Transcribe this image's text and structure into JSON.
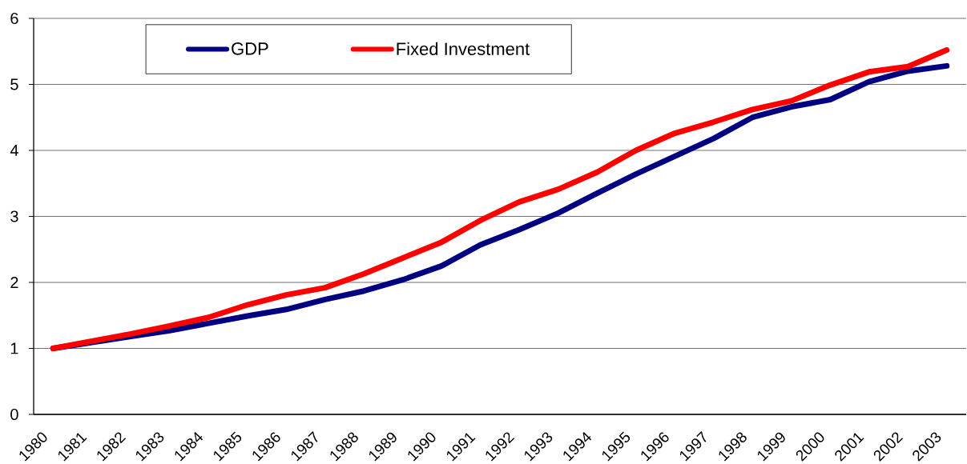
{
  "chart_data": {
    "type": "line",
    "categories": [
      "1980",
      "1981",
      "1982",
      "1983",
      "1984",
      "1985",
      "1986",
      "1987",
      "1988",
      "1989",
      "1990",
      "1991",
      "1992",
      "1993",
      "1994",
      "1995",
      "1996",
      "1997",
      "1998",
      "1999",
      "2000",
      "2001",
      "2002",
      "2003"
    ],
    "series": [
      {
        "name": "GDP",
        "color": "#000080",
        "values": [
          1.0,
          1.09,
          1.18,
          1.27,
          1.38,
          1.49,
          1.59,
          1.74,
          1.87,
          2.04,
          2.25,
          2.57,
          2.8,
          3.05,
          3.35,
          3.64,
          3.91,
          4.18,
          4.5,
          4.66,
          4.77,
          5.04,
          5.2,
          5.28
        ]
      },
      {
        "name": "Fixed Investment",
        "color": "#ff0000",
        "values": [
          1.0,
          1.11,
          1.22,
          1.34,
          1.47,
          1.66,
          1.81,
          1.92,
          2.13,
          2.37,
          2.61,
          2.94,
          3.22,
          3.41,
          3.67,
          4.0,
          4.26,
          4.43,
          4.62,
          4.75,
          4.99,
          5.19,
          5.27,
          5.52
        ]
      }
    ],
    "ylim": [
      0,
      6
    ],
    "yticks": [
      0,
      1,
      2,
      3,
      4,
      5,
      6
    ],
    "grid": "y",
    "legend": "top left",
    "marker": "none",
    "line_style": "solid"
  }
}
